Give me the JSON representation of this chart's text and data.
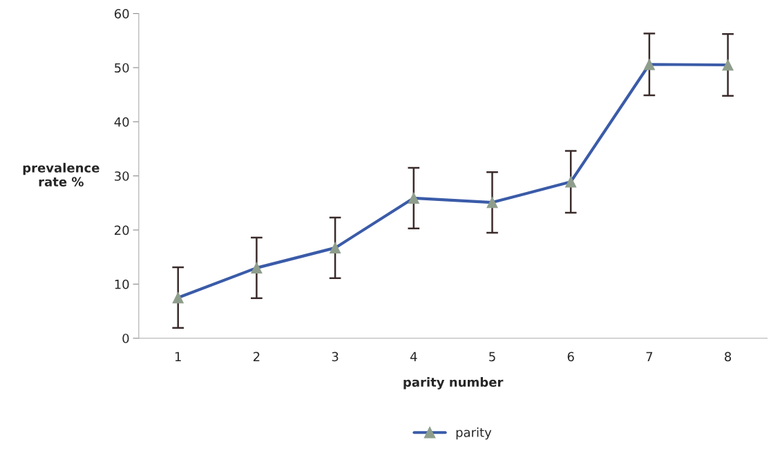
{
  "chart_data": {
    "type": "line",
    "xlabel": "parity number",
    "ylabel": "prevalence\nrate %",
    "categories": [
      "1",
      "2",
      "3",
      "4",
      "5",
      "6",
      "7",
      "8"
    ],
    "series": [
      {
        "name": "parity",
        "color": "#3a5ba8",
        "values": [
          7.5,
          13.0,
          16.7,
          25.9,
          25.1,
          28.9,
          50.6,
          50.5
        ],
        "errors": [
          5.6,
          5.6,
          5.6,
          5.6,
          5.6,
          5.7,
          5.7,
          5.7
        ]
      }
    ],
    "ylim": [
      0,
      60
    ],
    "yticks": [
      0,
      10,
      20,
      30,
      40,
      50,
      60
    ],
    "grid": false,
    "legend": "bottom",
    "marker": "triangle",
    "line_style": "solid"
  }
}
